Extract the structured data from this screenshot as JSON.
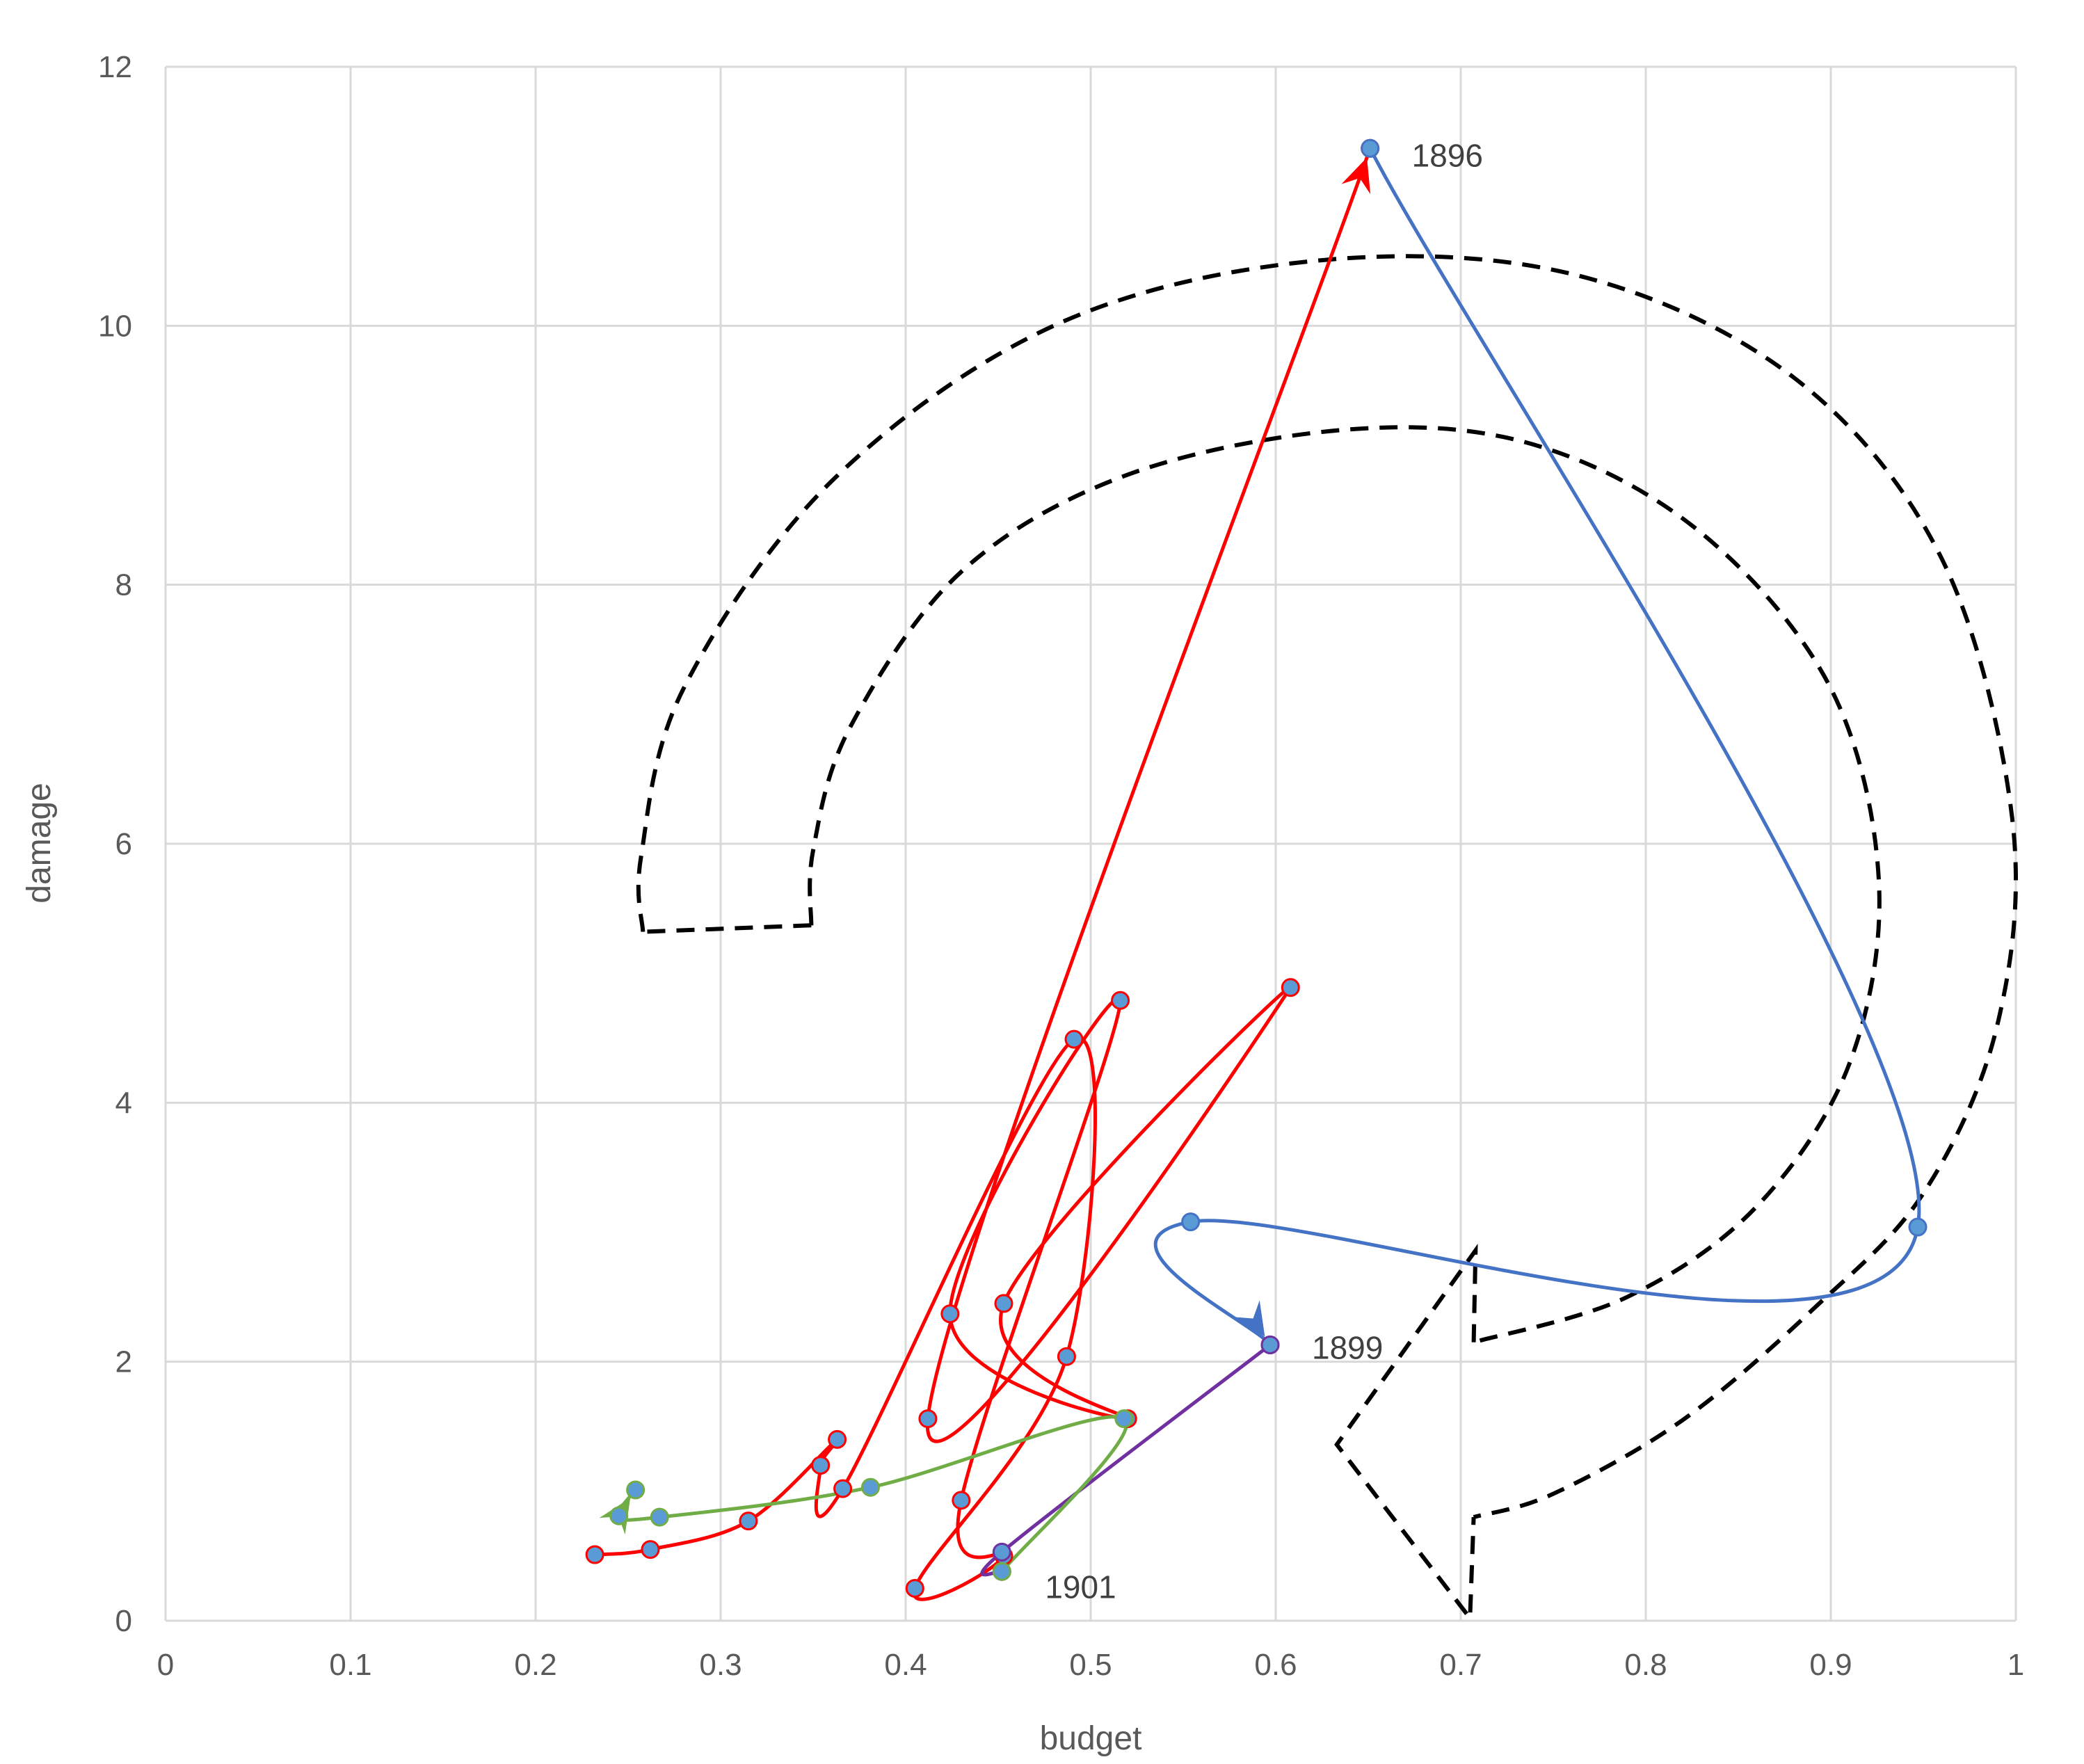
{
  "chart_data": {
    "type": "scatter",
    "xlabel": "budget",
    "ylabel": "damage",
    "xlim": [
      0,
      1
    ],
    "ylim": [
      0,
      12
    ],
    "grid": true,
    "xticks": [
      "0",
      "0.1",
      "0.2",
      "0.3",
      "0.4",
      "0.5",
      "0.6",
      "0.7",
      "0.8",
      "0.9",
      "1"
    ],
    "yticks": [
      "0",
      "2",
      "4",
      "6",
      "8",
      "10",
      "12"
    ],
    "colors": {
      "red_series": "#ff0000",
      "blue_series": "#4472c4",
      "green_series": "#70ad47",
      "purple_series": "#7030a0",
      "marker_fill": "#5b9bd5",
      "dashed_arrow": "#000000"
    },
    "series": [
      {
        "color": "red",
        "points": [
          {
            "x": 0.232,
            "y": 0.51
          },
          {
            "x": 0.262,
            "y": 0.55
          },
          {
            "x": 0.315,
            "y": 0.77
          },
          {
            "x": 0.363,
            "y": 1.4
          },
          {
            "x": 0.354,
            "y": 1.2
          },
          {
            "x": 0.366,
            "y": 1.02
          },
          {
            "x": 0.491,
            "y": 4.49
          },
          {
            "x": 0.487,
            "y": 2.04
          },
          {
            "x": 0.405,
            "y": 0.25
          },
          {
            "x": 0.453,
            "y": 0.5
          },
          {
            "x": 0.43,
            "y": 0.93
          },
          {
            "x": 0.516,
            "y": 4.79
          },
          {
            "x": 0.424,
            "y": 2.37
          },
          {
            "x": 0.52,
            "y": 1.56
          },
          {
            "x": 0.453,
            "y": 2.45
          },
          {
            "x": 0.608,
            "y": 4.89
          },
          {
            "x": 0.412,
            "y": 1.56
          },
          {
            "x": 0.651,
            "y": 11.37
          }
        ]
      },
      {
        "color": "blue",
        "points": [
          {
            "x": 0.651,
            "y": 11.37
          },
          {
            "x": 0.947,
            "y": 3.04
          },
          {
            "x": 0.554,
            "y": 3.08
          },
          {
            "x": 0.597,
            "y": 2.13
          }
        ]
      },
      {
        "color": "purple",
        "points": [
          {
            "x": 0.597,
            "y": 2.13
          },
          {
            "x": 0.452,
            "y": 0.53
          },
          {
            "x": 0.452,
            "y": 0.38
          }
        ]
      },
      {
        "color": "green",
        "points": [
          {
            "x": 0.452,
            "y": 0.38
          },
          {
            "x": 0.518,
            "y": 1.56
          },
          {
            "x": 0.381,
            "y": 1.03
          },
          {
            "x": 0.267,
            "y": 0.8
          },
          {
            "x": 0.245,
            "y": 0.81
          },
          {
            "x": 0.254,
            "y": 1.01
          }
        ]
      }
    ],
    "annotations": [
      {
        "text": "1896",
        "x": 0.651,
        "y": 11.37
      },
      {
        "text": "1899",
        "x": 0.597,
        "y": 2.13
      },
      {
        "text": "1901",
        "x": 0.452,
        "y": 0.38
      }
    ],
    "dashed_arrow": {
      "outer": [
        [
          0.258,
          5.32
        ],
        [
          0.257,
          5.9
        ],
        [
          0.28,
          7.2
        ],
        [
          0.36,
          8.8
        ],
        [
          0.48,
          10.0
        ],
        [
          0.62,
          10.5
        ],
        [
          0.76,
          10.4
        ],
        [
          0.88,
          9.6
        ],
        [
          0.96,
          8.2
        ],
        [
          0.998,
          6.2
        ],
        [
          0.99,
          4.6
        ],
        [
          0.95,
          3.3
        ],
        [
          0.89,
          2.4
        ],
        [
          0.82,
          1.55
        ],
        [
          0.75,
          0.98
        ],
        [
          0.707,
          0.8
        ]
      ],
      "inner": [
        [
          0.349,
          5.37
        ],
        [
          0.35,
          5.95
        ],
        [
          0.37,
          6.9
        ],
        [
          0.43,
          8.1
        ],
        [
          0.52,
          8.85
        ],
        [
          0.64,
          9.2
        ],
        [
          0.74,
          9.08
        ],
        [
          0.83,
          8.4
        ],
        [
          0.9,
          7.2
        ],
        [
          0.926,
          5.7
        ],
        [
          0.91,
          4.3
        ],
        [
          0.86,
          3.2
        ],
        [
          0.79,
          2.5
        ],
        [
          0.707,
          2.15
        ]
      ],
      "inner_cap": [
        0.258,
        5.32
      ],
      "head": [
        [
          0.707,
          2.15
        ],
        [
          0.708,
          2.86
        ],
        [
          0.633,
          1.36
        ],
        [
          0.705,
          0.02
        ],
        [
          0.707,
          0.8
        ]
      ]
    }
  }
}
